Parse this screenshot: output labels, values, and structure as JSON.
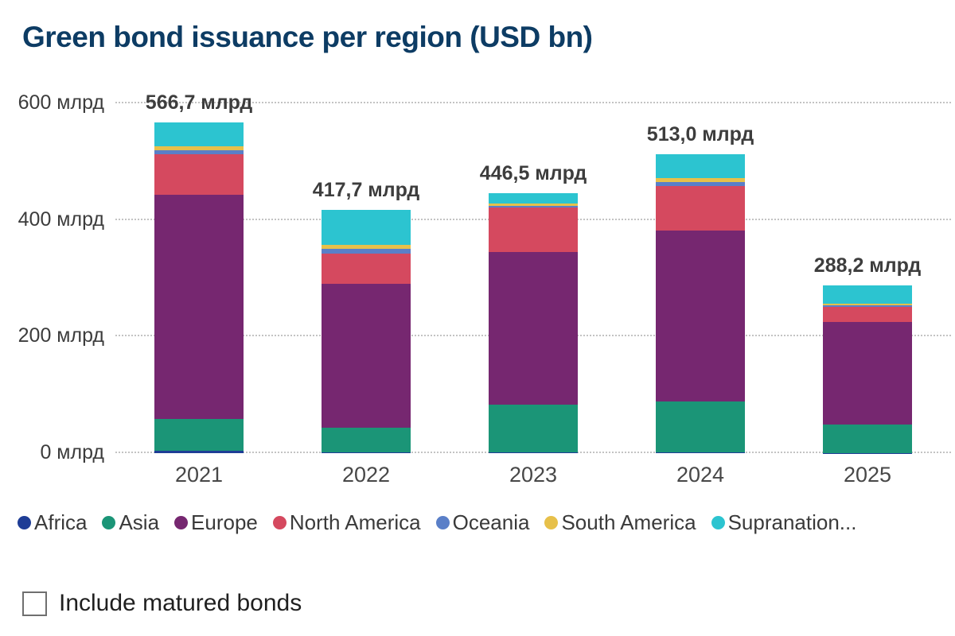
{
  "title": "Green bond issuance per region (USD bn)",
  "chart_data": {
    "type": "bar",
    "stacked": true,
    "title": "Green bond issuance per region (USD bn)",
    "categories": [
      "2021",
      "2022",
      "2023",
      "2024",
      "2025"
    ],
    "series": [
      {
        "name": "Africa",
        "legend_label": "Africa",
        "color": "#1e3d96",
        "values": [
          4,
          1,
          1,
          1,
          0.5
        ]
      },
      {
        "name": "Asia",
        "legend_label": "Asia",
        "color": "#1b9577",
        "values": [
          54,
          42,
          82,
          88,
          48
        ]
      },
      {
        "name": "Europe",
        "legend_label": "Europe",
        "color": "#762770",
        "values": [
          385,
          247,
          262,
          293,
          176
        ]
      },
      {
        "name": "North America",
        "legend_label": "North America",
        "color": "#d5495f",
        "values": [
          70,
          52,
          76,
          76,
          27
        ]
      },
      {
        "name": "Oceania",
        "legend_label": "Oceania",
        "color": "#5a7fc8",
        "values": [
          7,
          8,
          3,
          7,
          2
        ]
      },
      {
        "name": "South America",
        "legend_label": "South America",
        "color": "#e7c04a",
        "values": [
          7,
          7,
          4,
          7,
          3
        ]
      },
      {
        "name": "Supranational",
        "legend_label": "Supranation...",
        "color": "#2cc4d0",
        "values": [
          39.7,
          60.7,
          18.5,
          41,
          31.7
        ]
      }
    ],
    "totals": [
      "566,7 млрд",
      "417,7 млрд",
      "446,5 млрд",
      "513,0 млрд",
      "288,2 млрд"
    ],
    "total_values": [
      566.7,
      417.7,
      446.5,
      513.0,
      288.2
    ],
    "y_ticks": [
      {
        "value": 0,
        "label": "0 млрд"
      },
      {
        "value": 200,
        "label": "200 млрд"
      },
      {
        "value": 400,
        "label": "400 млрд"
      },
      {
        "value": 600,
        "label": "600 млрд"
      }
    ],
    "ylim": [
      0,
      600
    ],
    "unit": "млрд",
    "grid": "horizontal-dotted",
    "legend_position": "bottom"
  },
  "checkbox": {
    "label": "Include matured bonds",
    "checked": false
  }
}
